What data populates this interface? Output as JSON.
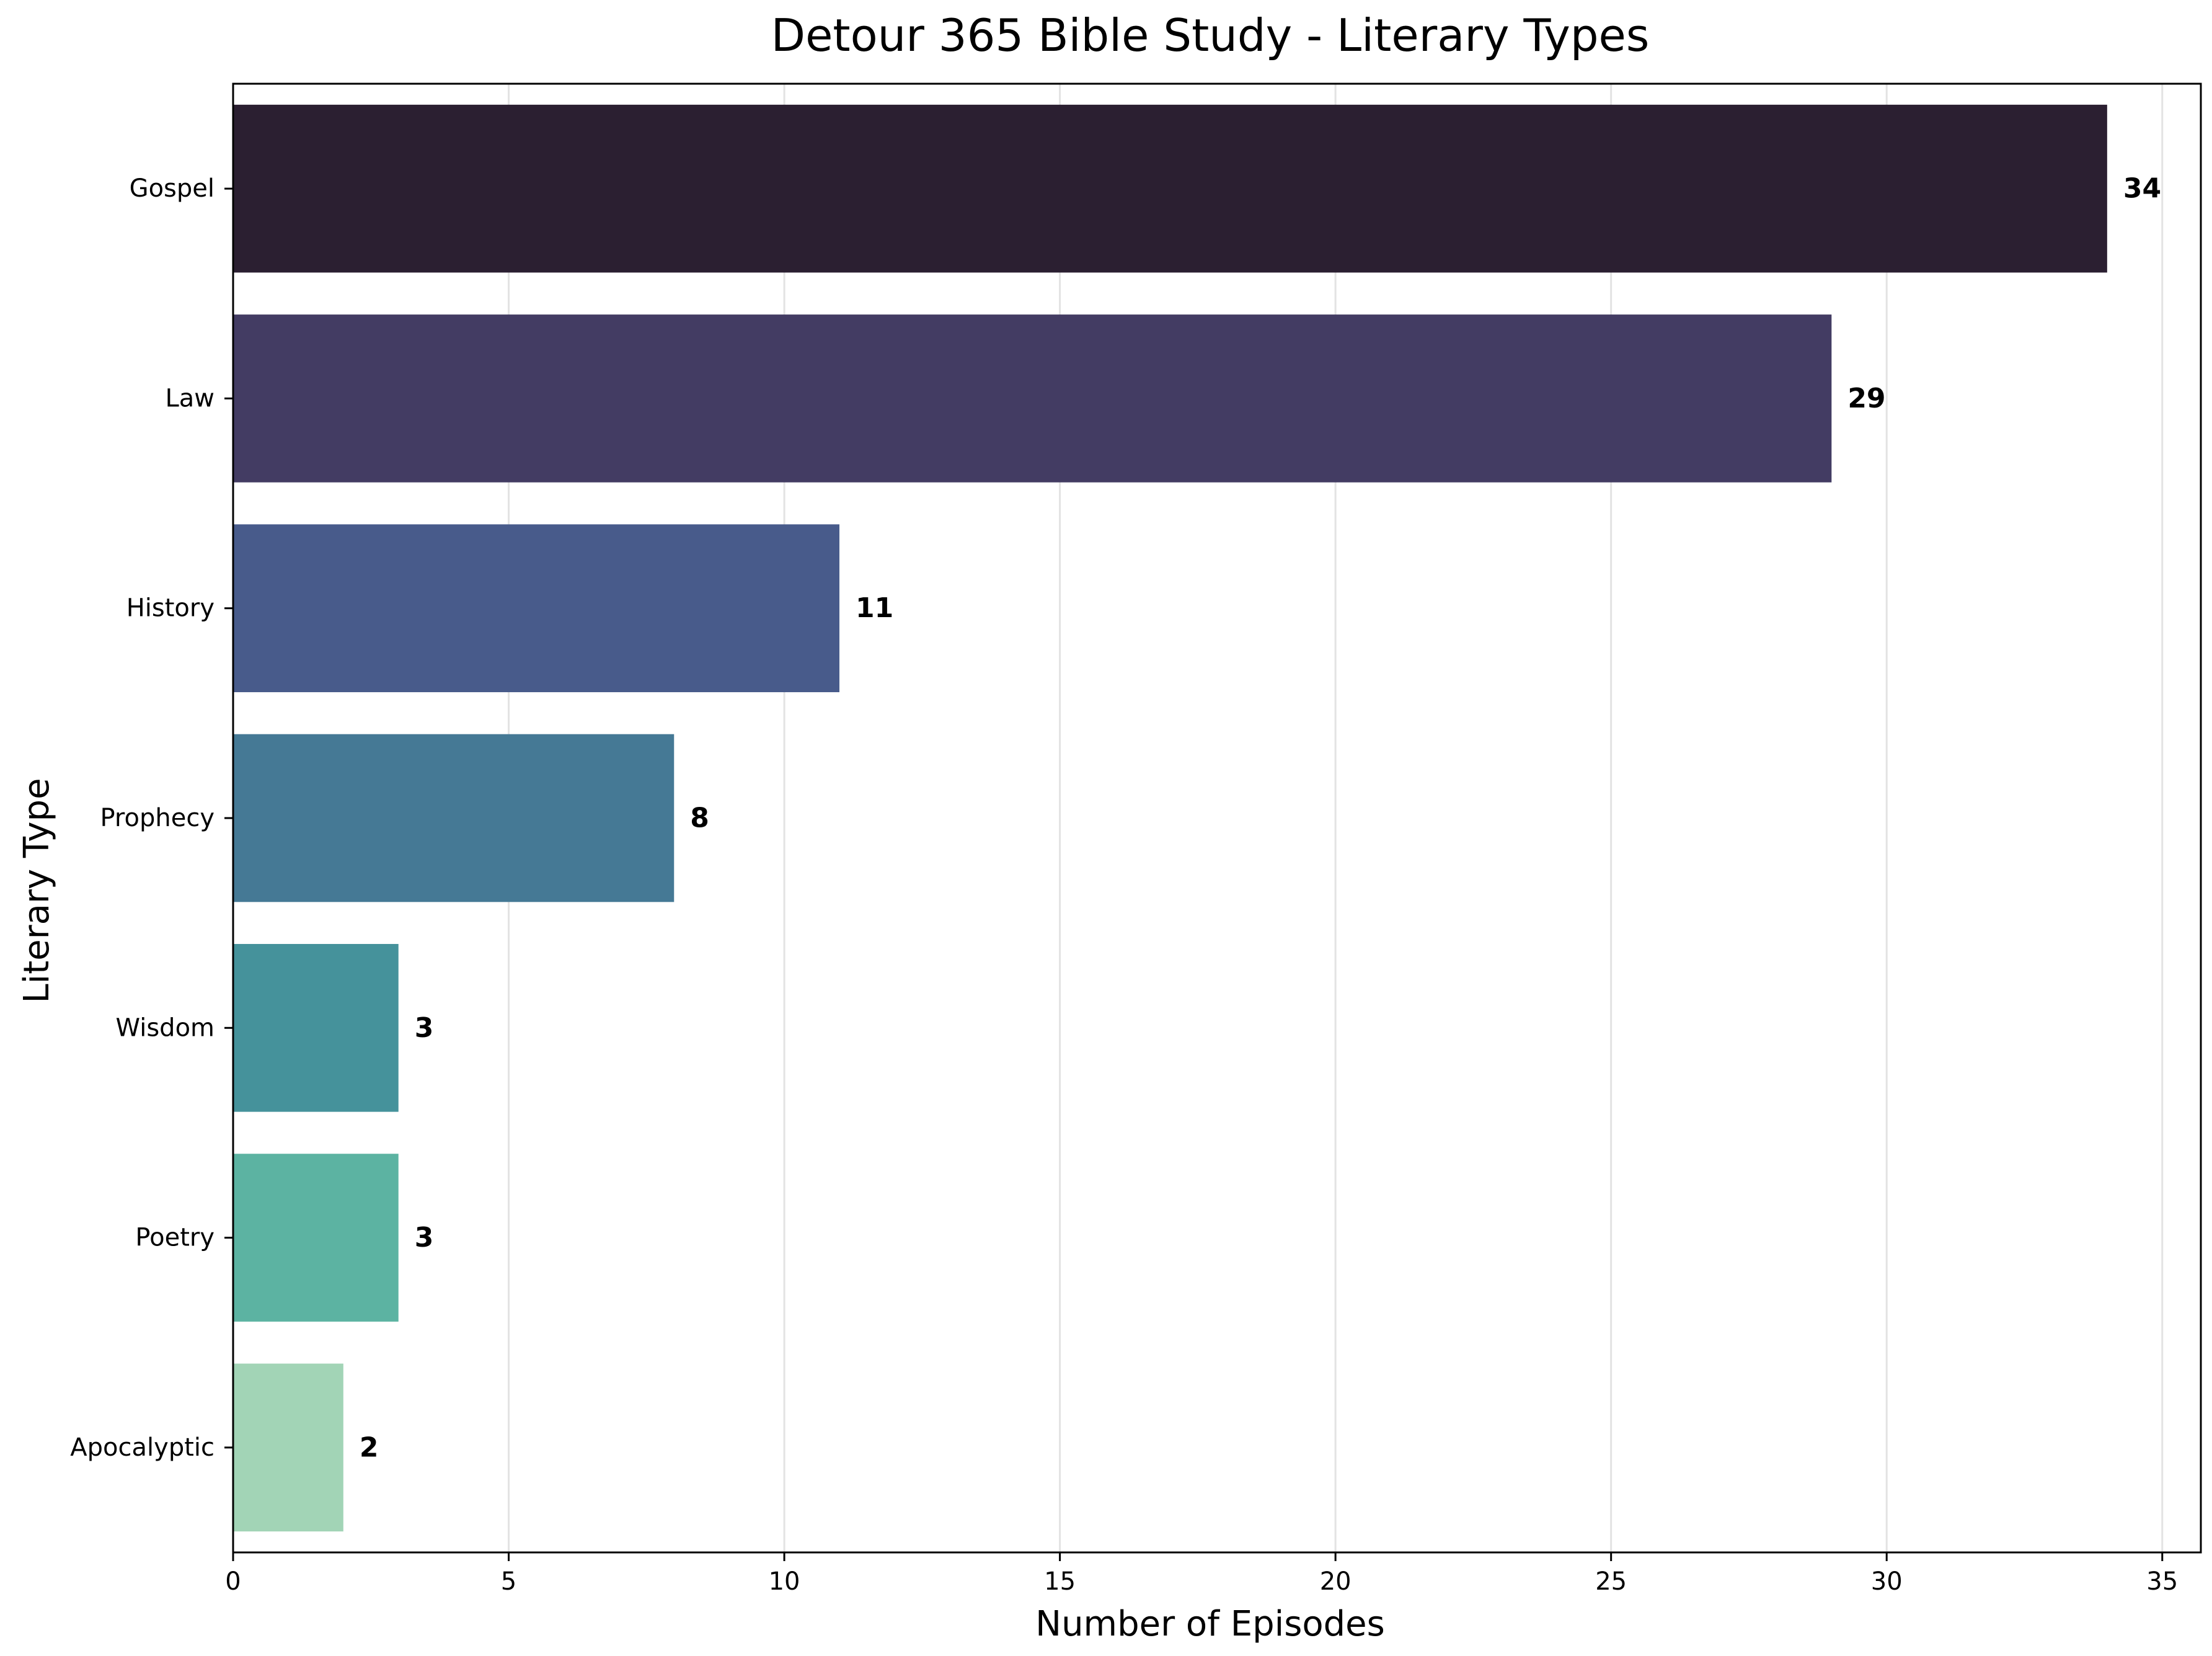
{
  "chart_data": {
    "type": "bar",
    "orientation": "horizontal",
    "title": "Detour 365 Bible Study - Literary Types",
    "xlabel": "Number of Episodes",
    "ylabel": "Literary Type",
    "categories": [
      "Gospel",
      "Law",
      "History",
      "Prophecy",
      "Wisdom",
      "Poetry",
      "Apocalyptic"
    ],
    "values": [
      34,
      29,
      11,
      8,
      3,
      3,
      2
    ],
    "colors": [
      "#2b1f31",
      "#433c63",
      "#485b8b",
      "#457995",
      "#45929b",
      "#5cb3a2",
      "#a2d4b6"
    ],
    "xlim": [
      0,
      35.7
    ],
    "xticks": [
      0,
      5,
      10,
      15,
      20,
      25,
      30,
      35
    ],
    "grid": "x",
    "show_value_labels": true
  }
}
